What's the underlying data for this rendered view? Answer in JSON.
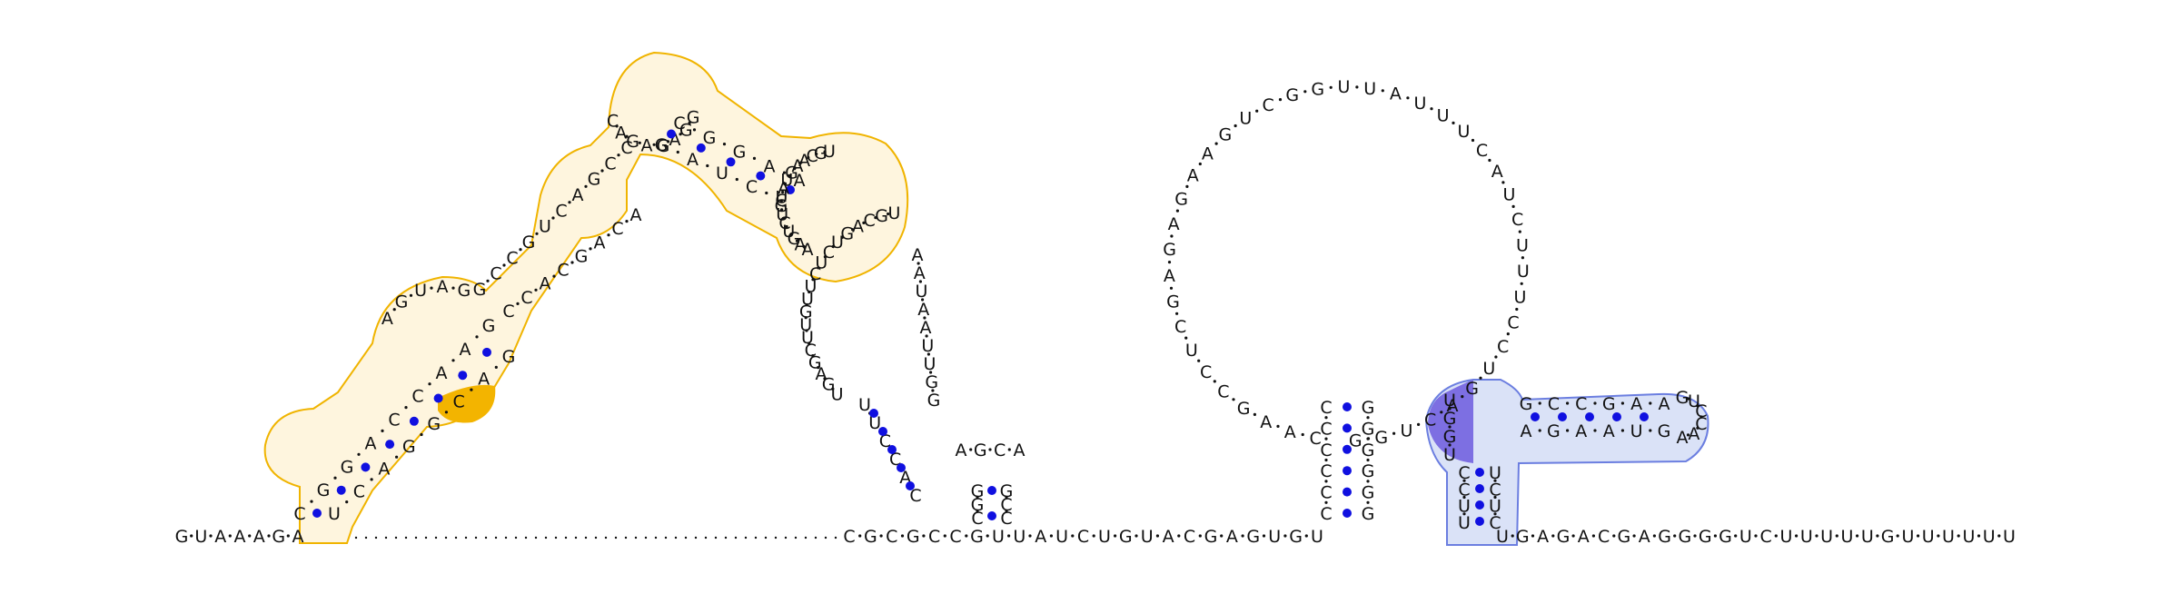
{
  "diagram": {
    "type": "rna-secondary-structure",
    "colors": {
      "pair_dot": "#1010e0",
      "highlight_a": "#f0b400",
      "highlight_b": "#6b7ee0"
    },
    "bases": {
      "backbone_left": "GUAAAGA",
      "backbone_mid": "CGCGCCGUUAUCUGUACGAGUGU",
      "backbone_right": "UGAGACGAGGGGUCUUUUUGUUUUUU",
      "helix1_left": "CGGACCAAG",
      "helix1_right": "UCAGGCAG",
      "loop1_top": "AGUAG",
      "helix2": "GCCGUCAGCC",
      "helix2_right": "CCACGACA",
      "top_loop": "CAGAGAGG",
      "top_helix": "CGGAA",
      "top_helix_inner": "GAUCCCUUAU",
      "right_loop": "UGCAAGUAUGUCUGAA",
      "stem_pair": "UUCCAC",
      "big_loop1": "UGCAGUCUCUUGUUCGAGU",
      "side_loop1": "AAUAAUUGG",
      "small_hairpin": "AGCA",
      "big_loop2": "CAAGCCUCGAGAGAAGUCGGUUAUUUCAUCUUUCCUGACUGG",
      "stem_mid": "CCCCCC",
      "stem_mid_right": "GGGGGG",
      "highlight_b_bases": "UGGUGCCGAAAGAAUGCCUUUCUCGUCCAA",
      "highlight_b_marked": "UGGU"
    }
  }
}
